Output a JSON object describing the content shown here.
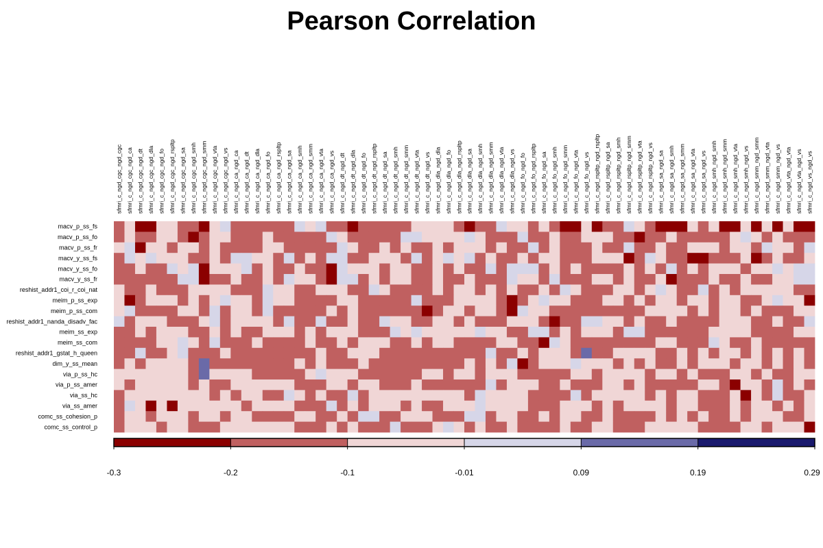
{
  "chart_data": {
    "type": "heatmap",
    "title": "Pearson Correlation",
    "x_labels": [
      "sfmri_c_ngd_cgc_ngd_cgc",
      "sfmri_c_ngd_cgc_ngd_ca",
      "sfmri_c_ngd_cgc_ngd_dt",
      "sfmri_c_ngd_cgc_ngd_dla",
      "sfmri_c_ngd_cgc_ngd_fo",
      "sfmri_c_ngd_cgc_ngd_rspltp",
      "sfmri_c_ngd_cgc_ngd_sa",
      "sfmri_c_ngd_cgc_ngd_smh",
      "sfmri_c_ngd_cgc_ngd_smm",
      "sfmri_c_ngd_cgc_ngd_vta",
      "sfmri_c_ngd_cgc_ngd_vs",
      "sfmri_c_ngd_ca_ngd_ca",
      "sfmri_c_ngd_ca_ngd_dt",
      "sfmri_c_ngd_ca_ngd_dla",
      "sfmri_c_ngd_ca_ngd_fo",
      "sfmri_c_ngd_ca_ngd_rspltp",
      "sfmri_c_ngd_ca_ngd_sa",
      "sfmri_c_ngd_ca_ngd_smh",
      "sfmri_c_ngd_ca_ngd_smm",
      "sfmri_c_ngd_ca_ngd_vta",
      "sfmri_c_ngd_ca_ngd_vs",
      "sfmri_c_ngd_dt_ngd_dt",
      "sfmri_c_ngd_dt_ngd_dla",
      "sfmri_c_ngd_dt_ngd_fo",
      "sfmri_c_ngd_dt_ngd_rspltp",
      "sfmri_c_ngd_dt_ngd_sa",
      "sfmri_c_ngd_dt_ngd_smh",
      "sfmri_c_ngd_dt_ngd_smm",
      "sfmri_c_ngd_dt_ngd_vta",
      "sfmri_c_ngd_dt_ngd_vs",
      "sfmri_c_ngd_dla_ngd_dla",
      "sfmri_c_ngd_dla_ngd_fo",
      "sfmri_c_ngd_dla_ngd_rspltp",
      "sfmri_c_ngd_dla_ngd_sa",
      "sfmri_c_ngd_dla_ngd_smh",
      "sfmri_c_ngd_dla_ngd_smm",
      "sfmri_c_ngd_dla_ngd_vta",
      "sfmri_c_ngd_dla_ngd_vs",
      "sfmri_c_ngd_fo_ngd_fo",
      "sfmri_c_ngd_fo_ngd_rspltp",
      "sfmri_c_ngd_fo_ngd_sa",
      "sfmri_c_ngd_fo_ngd_smh",
      "sfmri_c_ngd_fo_ngd_smm",
      "sfmri_c_ngd_fo_ngd_vta",
      "sfmri_c_ngd_fo_ngd_vs",
      "sfmri_c_ngd_rspltp_ngd_rspltp",
      "sfmri_c_ngd_rspltp_ngd_sa",
      "sfmri_c_ngd_rspltp_ngd_smh",
      "sfmri_c_ngd_rspltp_ngd_smm",
      "sfmri_c_ngd_rspltp_ngd_vta",
      "sfmri_c_ngd_rspltp_ngd_vs",
      "sfmri_c_ngd_sa_ngd_sa",
      "sfmri_c_ngd_sa_ngd_smh",
      "sfmri_c_ngd_sa_ngd_smm",
      "sfmri_c_ngd_sa_ngd_vta",
      "sfmri_c_ngd_sa_ngd_vs",
      "sfmri_c_ngd_smh_ngd_smh",
      "sfmri_c_ngd_smh_ngd_smm",
      "sfmri_c_ngd_smh_ngd_vta",
      "sfmri_c_ngd_smh_ngd_vs",
      "sfmri_c_ngd_smm_ngd_smm",
      "sfmri_c_ngd_smm_ngd_vta",
      "sfmri_c_ngd_smm_ngd_vs",
      "sfmri_c_ngd_vta_ngd_vta",
      "sfmri_c_ngd_vta_ngd_vs",
      "sfmri_c_ngd_vs_ngd_vs"
    ],
    "y_labels": [
      "macv_p_ss_fs",
      "macv_p_ss_fo",
      "macv_p_ss_fr",
      "macv_y_ss_fs",
      "macv_y_ss_fo",
      "macv_y_ss_fr",
      "reshist_addr1_coi_r_coi_nat",
      "meim_p_ss_exp",
      "meim_p_ss_com",
      "reshist_addr1_nanda_disadv_fac",
      "meim_ss_exp",
      "meim_ss_com",
      "reshist_addr1_gstat_h_queen",
      "dim_y_ss_mean",
      "via_p_ss_hc",
      "via_p_ss_amer",
      "via_ss_hc",
      "via_ss_amer",
      "comc_ss_cohesion_p",
      "comc_ss_control_p"
    ],
    "values": [
      "120022110231111113231101111122221011322121002011321000212002020200",
      "121122101221112111113211111332222321113112112221101121111123212111",
      "230221221211112211111321121211212221211312111211311211222122132213",
      "132322211213322131213311222131232312112122111222013211001112012112",
      "112113230222312112110322212211212113133312121111212131212221223233",
      "111111330112112132210331212211211211132213111221211201112112112233",
      "211211122221113221122211321111212212121121321112212321131212222211",
      "201222121232213221111221111131112222101232211122121221221221123220",
      "231111221312213111112121111110122122103221111111112222121221211122",
      "312221112312222131131121132211221211122210113322121121111222112113",
      "112122211212112221212221113232222232211331212221331111112222111122",
      "111122321311121111211212221121221111221103211111111221113211211111",
      "113112311121111111121122211111111113112122214112222112121221212121",
      "121222214111111112121112111111111212130122232221212112122212212121",
      "222222214222211111232221111112212212221111122122221221211122121122",
      "212222212112222221112212211121111113122211211122121111122102213121",
      "122222222121221132121131222222222132222111131222221212211120213112",
      "132020222222122221113121222121122232222111222121222212211121221212",
      "122122212212211112211213311222111331221121221121111212121121222112",
      "122212211122222221112121113111232121121111211221112222211112212220"
    ],
    "values_encoding": "0=-0.3..-0.2, 1=-0.2..-0.1, 2=-0.1..-0.01, 3=-0.01..0.09, 4=0.09..0.19, 5=0.19..0.29",
    "colorbar": {
      "ticks": [
        "-0.3",
        "-0.2",
        "-0.1",
        "-0.01",
        "0.09",
        "0.19",
        "0.29"
      ],
      "colors": [
        "#8b0000",
        "#c06060",
        "#f0d6d6",
        "#d6d6e8",
        "#6a6aa8",
        "#1a1a6e"
      ]
    }
  }
}
